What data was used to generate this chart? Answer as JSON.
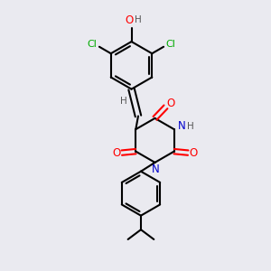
{
  "bg_color": "#eaeaf0",
  "bond_color": "#000000",
  "colors": {
    "O": "#ff0000",
    "N": "#0000cc",
    "Cl": "#00aa00",
    "H": "#555555"
  },
  "figsize": [
    3.0,
    3.0
  ],
  "dpi": 100
}
